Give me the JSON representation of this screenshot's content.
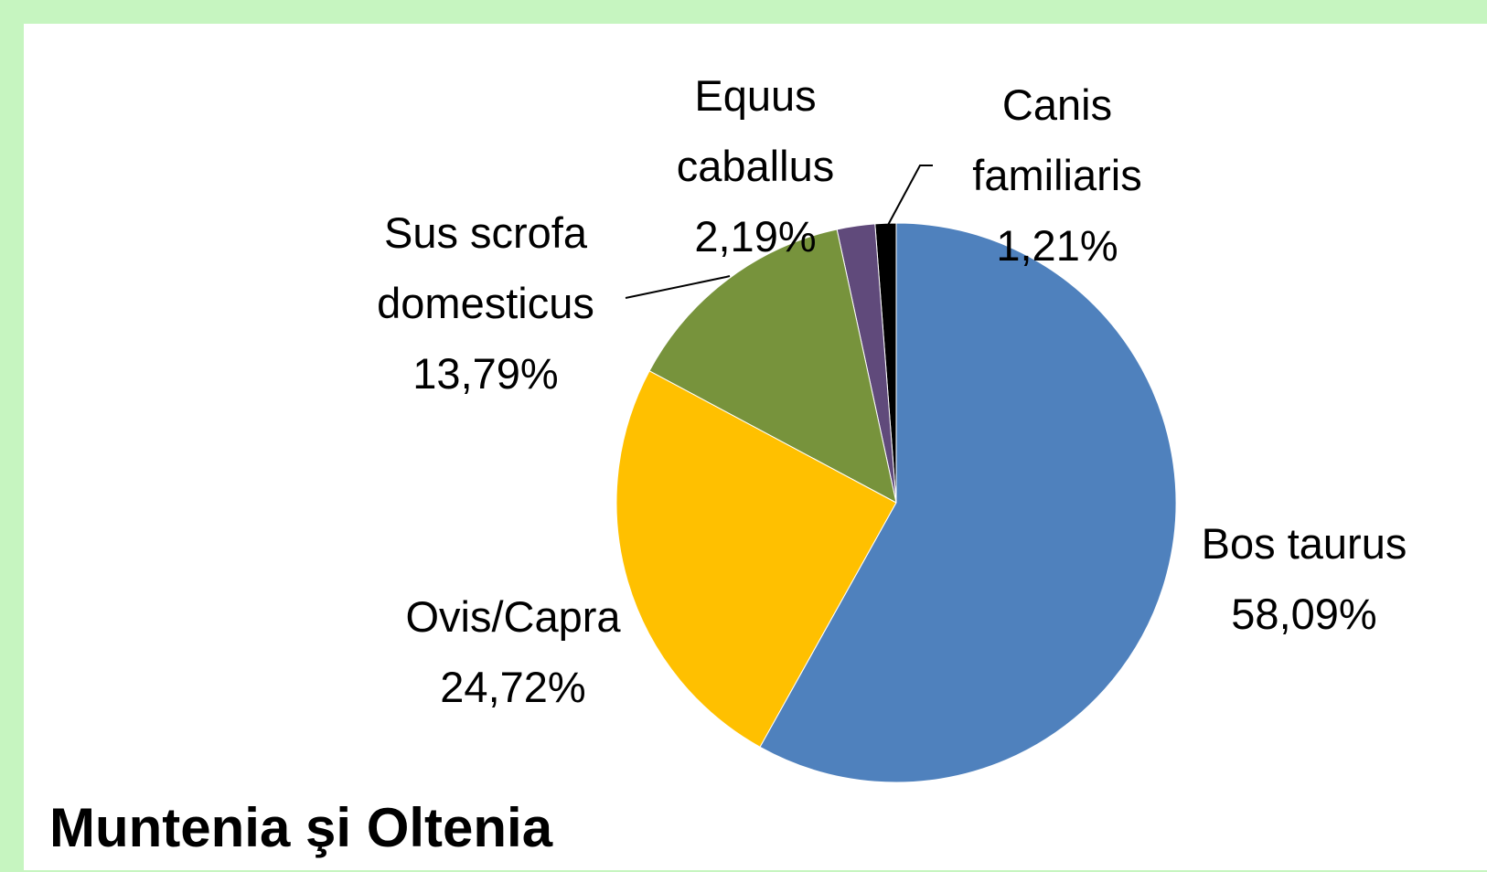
{
  "chart_data": {
    "type": "pie",
    "title": "Muntenia şi Oltenia",
    "categories": [
      "Bos taurus",
      "Ovis/Capra",
      "Sus scrofa domesticus",
      "Equus caballus",
      "Canis familiaris"
    ],
    "values": [
      58.09,
      24.72,
      13.79,
      2.19,
      1.21
    ],
    "value_labels": [
      "58,09%",
      "24,72%",
      "13,79%",
      "2,19%",
      "1,21%"
    ],
    "colors": [
      "#4f81bd",
      "#ffc000",
      "#77933c",
      "#604a7b",
      "#000000"
    ]
  }
}
